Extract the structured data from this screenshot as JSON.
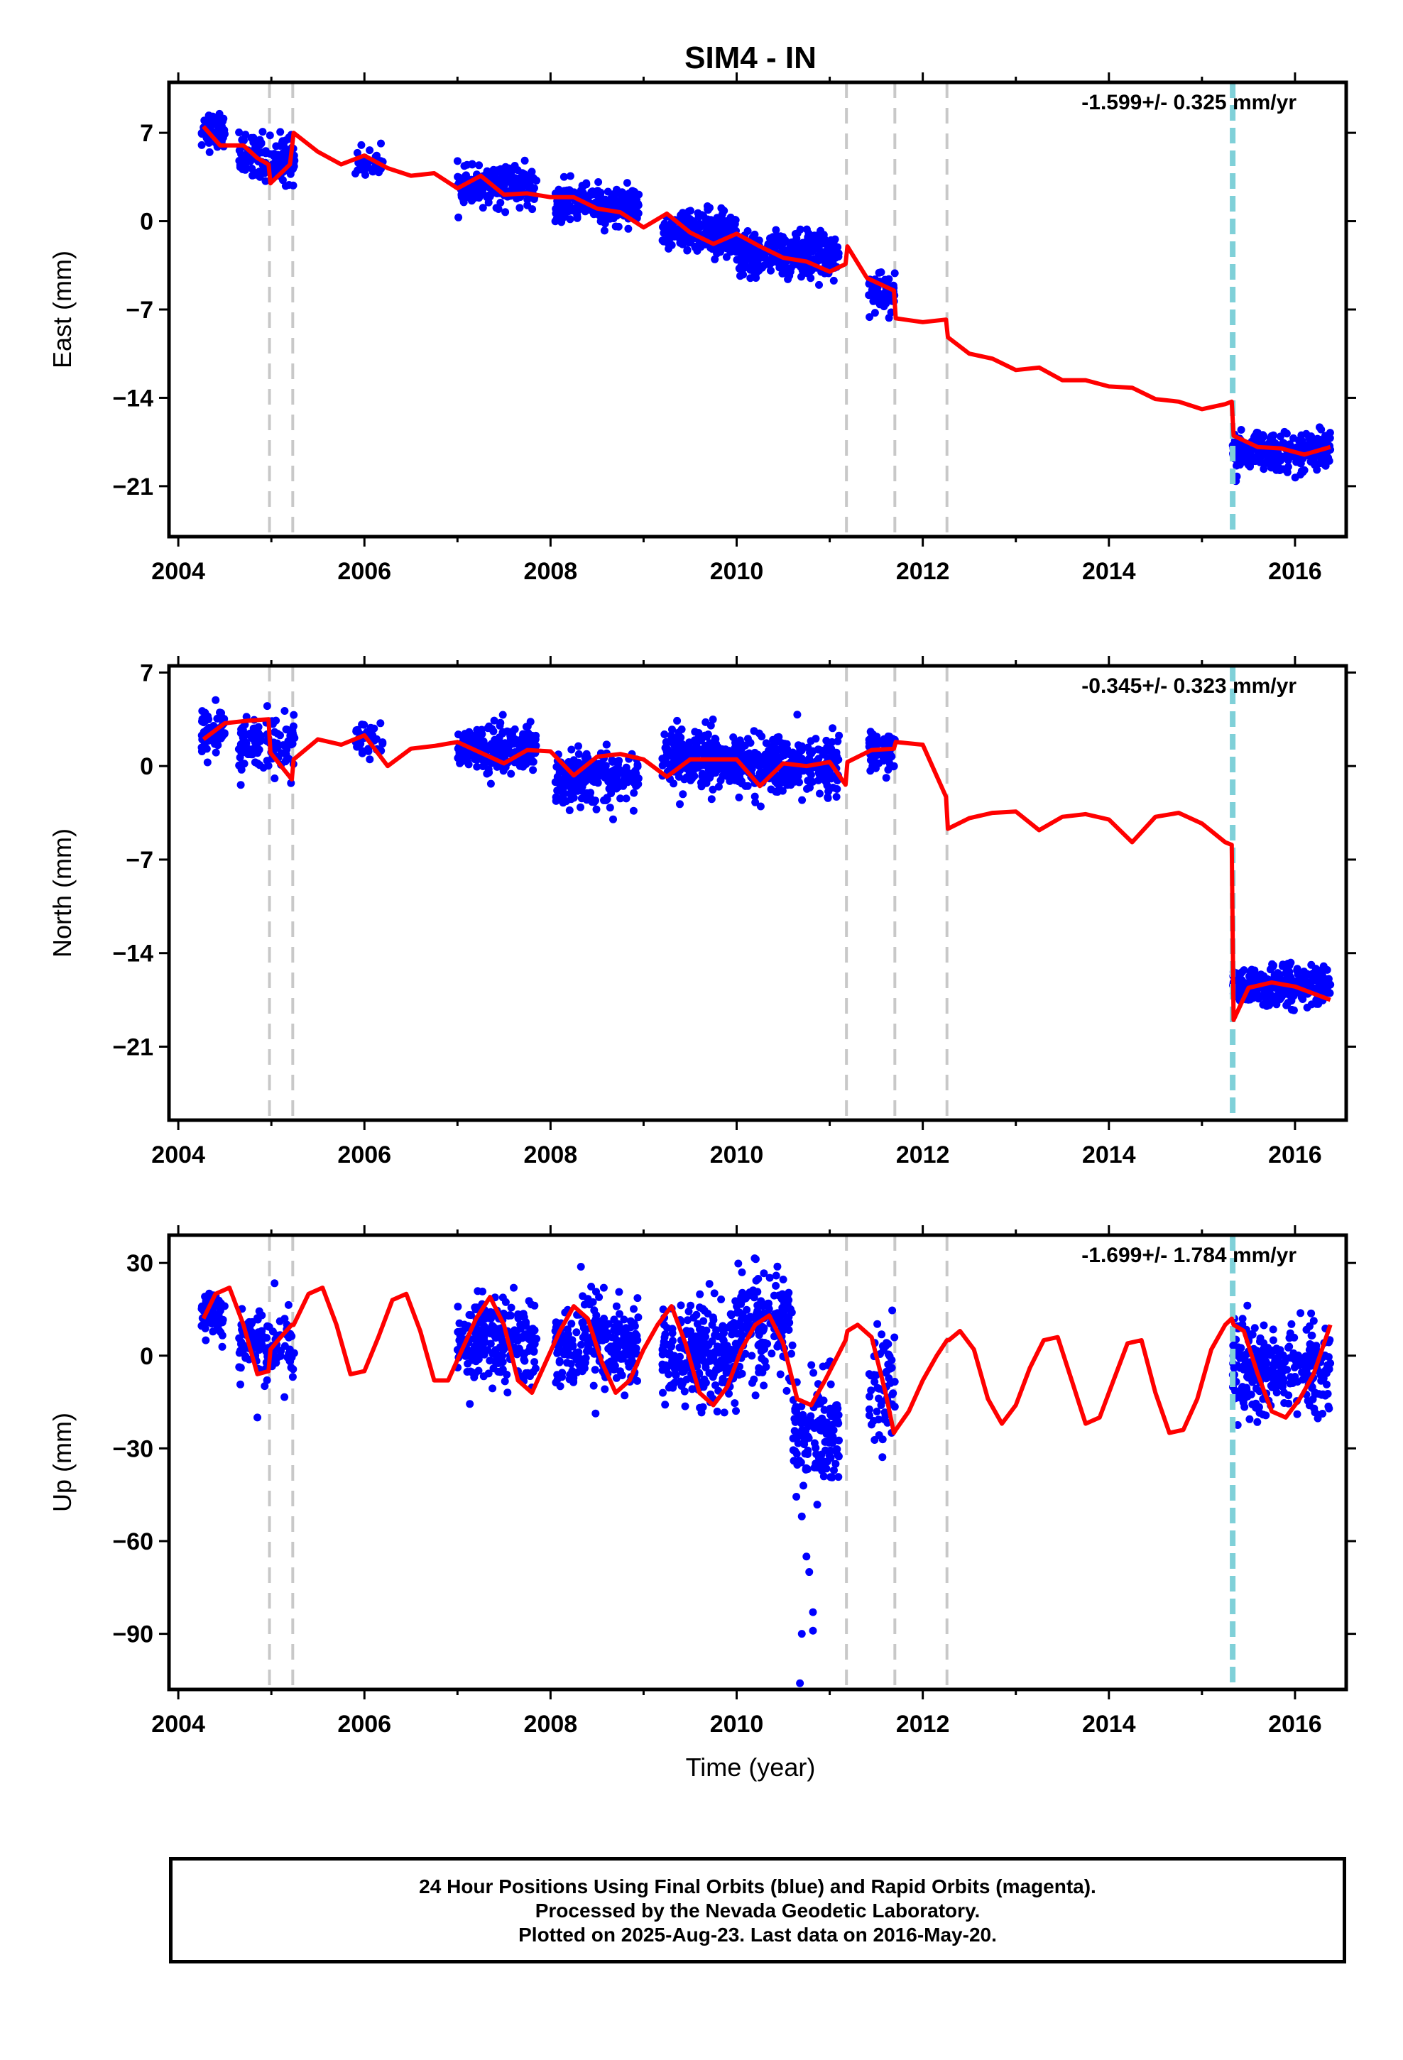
{
  "title": "SIM4 - IN",
  "xlabel": "Time (year)",
  "colors": {
    "data_points": "#0000ff",
    "model_line": "#ff0000",
    "offset_lines": "#c8c8c8",
    "event_line": "#7fd0d8"
  },
  "caption": {
    "line1": "24 Hour Positions Using Final Orbits (blue) and Rapid Orbits (magenta).",
    "line2": "Processed by the Nevada Geodetic Laboratory.",
    "line3": "Plotted on 2025-Aug-23. Last data on 2016-May-20."
  },
  "chart_data": [
    {
      "type": "scatter",
      "ylabel": "East (mm)",
      "rate_label": "-1.599+/- 0.325 mm/yr",
      "xlim": [
        2003.9,
        2016.55
      ],
      "ylim": [
        -25,
        11
      ],
      "xticks": [
        2004,
        2006,
        2008,
        2010,
        2012,
        2014,
        2016
      ],
      "yticks": [
        7,
        0,
        -7,
        -14,
        -21
      ],
      "offset_lines": [
        2004.98,
        2005.23,
        2011.18,
        2011.7,
        2012.26
      ],
      "event_lines": [
        2015.33
      ],
      "model_line": {
        "x": [
          2004.27,
          2004.45,
          2004.7,
          2004.85,
          2004.97,
          2004.99,
          2005.2,
          2005.24,
          2005.5,
          2005.75,
          2006.0,
          2006.25,
          2006.5,
          2006.75,
          2007.0,
          2007.25,
          2007.5,
          2007.75,
          2008.0,
          2008.25,
          2008.5,
          2008.75,
          2009.0,
          2009.25,
          2009.5,
          2009.75,
          2010.0,
          2010.25,
          2010.5,
          2010.75,
          2011.0,
          2011.17,
          2011.19,
          2011.4,
          2011.69,
          2011.71,
          2012.0,
          2012.25,
          2012.27,
          2012.5,
          2012.75,
          2013.0,
          2013.25,
          2013.5,
          2013.75,
          2014.0,
          2014.25,
          2014.5,
          2014.75,
          2015.0,
          2015.25,
          2015.32,
          2015.34,
          2015.6,
          2015.85,
          2016.1,
          2016.38
        ],
        "y": [
          7.5,
          6.0,
          6.0,
          5.0,
          4.5,
          3.0,
          4.5,
          7.0,
          5.5,
          4.5,
          5.2,
          4.2,
          3.6,
          3.8,
          2.6,
          3.6,
          2.1,
          2.2,
          1.9,
          1.9,
          1.0,
          0.7,
          -0.5,
          0.6,
          -0.9,
          -1.8,
          -1.0,
          -2.0,
          -2.9,
          -3.2,
          -4.0,
          -3.4,
          -2.0,
          -4.5,
          -5.5,
          -7.7,
          -8.0,
          -7.8,
          -9.2,
          -10.5,
          -10.9,
          -11.8,
          -11.6,
          -12.6,
          -12.6,
          -13.1,
          -13.2,
          -14.1,
          -14.3,
          -14.9,
          -14.5,
          -14.3,
          -17.0,
          -17.9,
          -18.0,
          -18.5,
          -17.9
        ]
      },
      "scatter_clusters": [
        {
          "x_range": [
            2004.25,
            2004.5
          ],
          "y_center": 7.2,
          "spread": 1.2,
          "count": 70
        },
        {
          "x_range": [
            2004.65,
            2005.25
          ],
          "y_center": 5.0,
          "spread": 1.6,
          "count": 120
        },
        {
          "x_range": [
            2005.9,
            2006.2
          ],
          "y_center": 4.6,
          "spread": 0.9,
          "count": 40
        },
        {
          "x_range": [
            2007.0,
            2007.85
          ],
          "y_center": 2.8,
          "spread": 1.2,
          "count": 240
        },
        {
          "x_range": [
            2008.05,
            2008.95
          ],
          "y_center": 1.3,
          "spread": 1.2,
          "count": 260
        },
        {
          "x_range": [
            2009.2,
            2010.0
          ],
          "y_center": -0.8,
          "spread": 1.3,
          "count": 260
        },
        {
          "x_range": [
            2010.0,
            2011.1
          ],
          "y_center": -2.7,
          "spread": 1.5,
          "count": 300
        },
        {
          "x_range": [
            2011.42,
            2011.7
          ],
          "y_center": -5.8,
          "spread": 1.3,
          "count": 60
        },
        {
          "x_range": [
            2015.33,
            2016.38
          ],
          "y_center": -18.2,
          "spread": 1.2,
          "count": 300
        }
      ]
    },
    {
      "type": "scatter",
      "ylabel": "North (mm)",
      "rate_label": "-0.345+/- 0.323 mm/yr",
      "xlim": [
        2003.9,
        2016.55
      ],
      "ylim": [
        -26.5,
        7.5
      ],
      "xticks": [
        2004,
        2006,
        2008,
        2010,
        2012,
        2014,
        2016
      ],
      "yticks": [
        7,
        0,
        -7,
        -14,
        -21
      ],
      "offset_lines": [
        2004.98,
        2005.23,
        2011.18,
        2011.7,
        2012.26
      ],
      "event_lines": [
        2015.33
      ],
      "model_line": {
        "x": [
          2004.27,
          2004.5,
          2004.75,
          2004.97,
          2004.99,
          2005.22,
          2005.24,
          2005.5,
          2005.75,
          2006.0,
          2006.25,
          2006.5,
          2006.75,
          2007.0,
          2007.25,
          2007.5,
          2007.75,
          2008.0,
          2008.25,
          2008.5,
          2008.75,
          2009.0,
          2009.25,
          2009.5,
          2009.75,
          2010.0,
          2010.25,
          2010.5,
          2010.75,
          2011.0,
          2011.17,
          2011.19,
          2011.45,
          2011.69,
          2011.71,
          2012.0,
          2012.25,
          2012.27,
          2012.5,
          2012.75,
          2013.0,
          2013.25,
          2013.5,
          2013.75,
          2014.0,
          2014.25,
          2014.5,
          2014.75,
          2015.0,
          2015.25,
          2015.32,
          2015.34,
          2015.5,
          2015.75,
          2016.0,
          2016.38
        ],
        "y": [
          2.0,
          3.2,
          3.4,
          3.5,
          1.0,
          -1.0,
          0.5,
          2.0,
          1.6,
          2.3,
          0.0,
          1.3,
          1.5,
          1.8,
          1.0,
          0.2,
          1.2,
          1.1,
          -0.7,
          0.7,
          0.9,
          0.5,
          -0.8,
          0.5,
          0.5,
          0.5,
          -1.5,
          0.2,
          0.0,
          0.3,
          -1.4,
          0.3,
          1.2,
          1.3,
          1.8,
          1.6,
          -2.3,
          -4.7,
          -3.9,
          -3.5,
          -3.4,
          -4.8,
          -3.8,
          -3.6,
          -4.0,
          -5.7,
          -3.8,
          -3.5,
          -4.3,
          -5.7,
          -5.9,
          -19.0,
          -16.6,
          -16.2,
          -16.5,
          -17.5
        ]
      },
      "scatter_clusters": [
        {
          "x_range": [
            2004.25,
            2004.5
          ],
          "y_center": 2.5,
          "spread": 1.5,
          "count": 70
        },
        {
          "x_range": [
            2004.65,
            2005.25
          ],
          "y_center": 1.5,
          "spread": 2.0,
          "count": 120
        },
        {
          "x_range": [
            2005.9,
            2006.2
          ],
          "y_center": 2.0,
          "spread": 1.2,
          "count": 40
        },
        {
          "x_range": [
            2007.0,
            2007.85
          ],
          "y_center": 1.2,
          "spread": 1.4,
          "count": 240
        },
        {
          "x_range": [
            2008.05,
            2008.95
          ],
          "y_center": -0.8,
          "spread": 1.6,
          "count": 260
        },
        {
          "x_range": [
            2009.2,
            2010.0
          ],
          "y_center": 0.6,
          "spread": 1.7,
          "count": 260
        },
        {
          "x_range": [
            2010.0,
            2011.1
          ],
          "y_center": 0.0,
          "spread": 1.8,
          "count": 300
        },
        {
          "x_range": [
            2011.42,
            2011.7
          ],
          "y_center": 1.2,
          "spread": 1.5,
          "count": 60
        },
        {
          "x_range": [
            2015.33,
            2016.38
          ],
          "y_center": -16.5,
          "spread": 1.2,
          "count": 300
        }
      ]
    },
    {
      "type": "scatter",
      "ylabel": "Up (mm)",
      "rate_label": "-1.699+/- 1.784 mm/yr",
      "xlim": [
        2003.9,
        2016.55
      ],
      "ylim": [
        -108,
        39
      ],
      "xticks": [
        2004,
        2006,
        2008,
        2010,
        2012,
        2014,
        2016
      ],
      "yticks": [
        30,
        0,
        -30,
        -60,
        -90
      ],
      "offset_lines": [
        2004.98,
        2005.23,
        2011.18,
        2011.7,
        2012.26
      ],
      "event_lines": [
        2015.33
      ],
      "model_line": {
        "x": [
          2004.27,
          2004.4,
          2004.55,
          2004.7,
          2004.85,
          2004.97,
          2004.99,
          2005.1,
          2005.22,
          2005.24,
          2005.4,
          2005.55,
          2005.7,
          2005.85,
          2006.0,
          2006.15,
          2006.3,
          2006.45,
          2006.6,
          2006.75,
          2006.9,
          2007.05,
          2007.2,
          2007.35,
          2007.5,
          2007.65,
          2007.8,
          2007.95,
          2008.1,
          2008.25,
          2008.4,
          2008.55,
          2008.7,
          2008.85,
          2009.0,
          2009.15,
          2009.3,
          2009.45,
          2009.6,
          2009.75,
          2009.9,
          2010.05,
          2010.2,
          2010.35,
          2010.5,
          2010.65,
          2010.8,
          2010.95,
          2011.17,
          2011.19,
          2011.3,
          2011.45,
          2011.6,
          2011.69,
          2011.71,
          2011.85,
          2012.0,
          2012.15,
          2012.26,
          2012.28,
          2012.4,
          2012.55,
          2012.7,
          2012.85,
          2013.0,
          2013.15,
          2013.3,
          2013.45,
          2013.6,
          2013.75,
          2013.9,
          2014.05,
          2014.2,
          2014.35,
          2014.5,
          2014.65,
          2014.8,
          2014.95,
          2015.1,
          2015.25,
          2015.32,
          2015.34,
          2015.45,
          2015.6,
          2015.75,
          2015.9,
          2016.05,
          2016.2,
          2016.38
        ],
        "y": [
          12,
          20,
          22,
          10,
          -6,
          -5,
          2,
          6,
          10,
          10,
          20,
          22,
          10,
          -6,
          -5,
          6,
          18,
          20,
          8,
          -8,
          -8,
          2,
          12,
          19,
          10,
          -8,
          -12,
          -2,
          8,
          16,
          12,
          -2,
          -12,
          -8,
          2,
          10,
          16,
          4,
          -12,
          -16,
          -10,
          2,
          10,
          13,
          4,
          -14,
          -16,
          -8,
          5,
          8,
          10,
          6,
          -12,
          -25,
          -24,
          -18,
          -8,
          0,
          5,
          5,
          8,
          2,
          -14,
          -22,
          -16,
          -4,
          5,
          6,
          -8,
          -22,
          -20,
          -8,
          4,
          5,
          -12,
          -25,
          -24,
          -14,
          2,
          10,
          12,
          10,
          8,
          -6,
          -18,
          -20,
          -14,
          -6,
          10
        ]
      },
      "scatter_clusters": [
        {
          "x_range": [
            2004.25,
            2004.5
          ],
          "y_center": 14,
          "spread": 6,
          "count": 70
        },
        {
          "x_range": [
            2004.65,
            2005.25
          ],
          "y_center": 3,
          "spread": 9,
          "count": 120
        },
        {
          "x_range": [
            2007.0,
            2007.85
          ],
          "y_center": 5,
          "spread": 11,
          "count": 240
        },
        {
          "x_range": [
            2008.05,
            2008.95
          ],
          "y_center": 3,
          "spread": 13,
          "count": 260
        },
        {
          "x_range": [
            2009.2,
            2010.0
          ],
          "y_center": 0,
          "spread": 13,
          "count": 260
        },
        {
          "x_range": [
            2010.0,
            2010.6
          ],
          "y_center": 10,
          "spread": 14,
          "count": 160
        },
        {
          "x_range": [
            2010.6,
            2011.1
          ],
          "y_center": -25,
          "spread": 14,
          "count": 140
        },
        {
          "x_range": [
            2011.42,
            2011.7
          ],
          "y_center": -10,
          "spread": 15,
          "count": 60
        },
        {
          "x_range": [
            2015.33,
            2016.38
          ],
          "y_center": -4,
          "spread": 12,
          "count": 300
        }
      ],
      "outliers": [
        {
          "x": 2010.7,
          "y": -52
        },
        {
          "x": 2010.75,
          "y": -65
        },
        {
          "x": 2010.78,
          "y": -70
        },
        {
          "x": 2010.7,
          "y": -90
        },
        {
          "x": 2010.82,
          "y": -83
        },
        {
          "x": 2010.82,
          "y": -89
        },
        {
          "x": 2010.68,
          "y": -106
        },
        {
          "x": 2004.85,
          "y": -20
        }
      ]
    }
  ]
}
